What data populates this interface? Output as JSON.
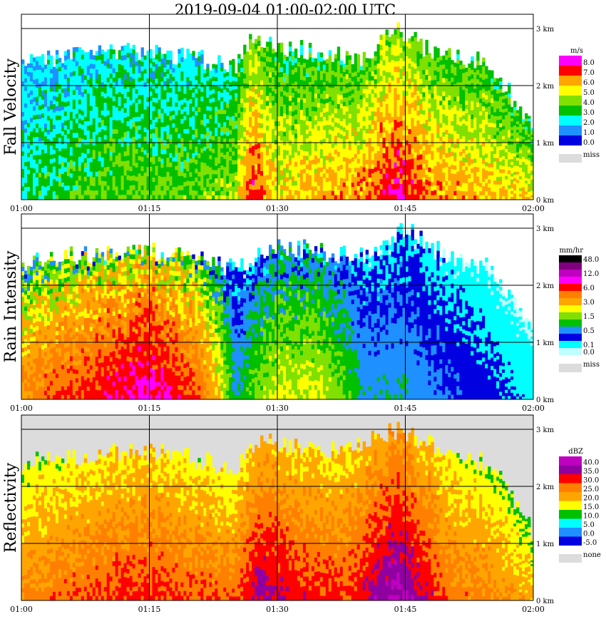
{
  "title": "2019-09-04   01:00-02:00 UTC",
  "x_ticks": [
    "01:00",
    "01:15",
    "01:30",
    "01:45",
    "02:00"
  ],
  "y_ticks": [
    "0 km",
    "1 km",
    "2 km",
    "3 km"
  ],
  "panels": [
    {
      "name": "Fall Velocity",
      "unit": "m/s",
      "legend": [
        {
          "label": "8.0",
          "color": "#ff00ff"
        },
        {
          "label": "7.0",
          "color": "#ff0000"
        },
        {
          "label": "6.0",
          "color": "#ffa500"
        },
        {
          "label": "5.0",
          "color": "#ffff00"
        },
        {
          "label": "4.0",
          "color": "#80e000"
        },
        {
          "label": "3.0",
          "color": "#00c000"
        },
        {
          "label": "2.0",
          "color": "#00ffff"
        },
        {
          "label": "1.0",
          "color": "#1e90ff"
        },
        {
          "label": "0.0",
          "color": "#0000e0"
        }
      ],
      "miss_label": "miss"
    },
    {
      "name": "Rain Intensity",
      "unit": "mm/hr",
      "legend": [
        {
          "label": "48.0",
          "color": "#000000"
        },
        {
          "label": "",
          "color": "#800080"
        },
        {
          "label": "12.0",
          "color": "#c000c0"
        },
        {
          "label": "",
          "color": "#ff00ff"
        },
        {
          "label": "6.0",
          "color": "#ff0000"
        },
        {
          "label": "",
          "color": "#ff8000"
        },
        {
          "label": "3.0",
          "color": "#ffa500"
        },
        {
          "label": "",
          "color": "#ffff00"
        },
        {
          "label": "1.5",
          "color": "#80e000"
        },
        {
          "label": "",
          "color": "#00c000"
        },
        {
          "label": "0.5",
          "color": "#1e90ff"
        },
        {
          "label": "",
          "color": "#0000e0"
        },
        {
          "label": "0.1",
          "color": "#00ffff"
        },
        {
          "label": "0.0",
          "color": "#c0ffff"
        }
      ],
      "miss_label": "miss"
    },
    {
      "name": "Reflectivity",
      "unit": "dBZ",
      "legend": [
        {
          "label": "40.0",
          "color": "#c000c0"
        },
        {
          "label": "35.0",
          "color": "#9000a0"
        },
        {
          "label": "30.0",
          "color": "#ff0000"
        },
        {
          "label": "25.0",
          "color": "#ff8000"
        },
        {
          "label": "20.0",
          "color": "#ffa500"
        },
        {
          "label": "15.0",
          "color": "#ffff00"
        },
        {
          "label": "10.0",
          "color": "#00c000"
        },
        {
          "label": "5.0",
          "color": "#00ffff"
        },
        {
          "label": "0.0",
          "color": "#1e90ff"
        },
        {
          "label": "-5.0",
          "color": "#0000e0"
        }
      ],
      "miss_label": "none"
    }
  ],
  "chart_data": {
    "type": "heatmap",
    "title": "2019-09-04   01:00-02:00 UTC",
    "x_range": [
      "01:00",
      "02:00"
    ],
    "y_range_km": [
      0,
      3
    ],
    "panels": [
      {
        "name": "Fall Velocity",
        "unit": "m/s",
        "approx_time_profile": [
          {
            "time": "01:00",
            "echo_top_km": 2.4,
            "dominant_value": 2.5
          },
          {
            "time": "01:05",
            "echo_top_km": 2.5,
            "dominant_value": 3.0
          },
          {
            "time": "01:10",
            "echo_top_km": 2.6,
            "dominant_value": 3.5
          },
          {
            "time": "01:15",
            "echo_top_km": 2.6,
            "dominant_value": 3.5
          },
          {
            "time": "01:20",
            "echo_top_km": 2.5,
            "dominant_value": 3.5
          },
          {
            "time": "01:25",
            "echo_top_km": 2.3,
            "dominant_value": 4.0
          },
          {
            "time": "01:27",
            "echo_top_km": 2.8,
            "dominant_value": 7.0
          },
          {
            "time": "01:30",
            "echo_top_km": 2.7,
            "dominant_value": 5.0
          },
          {
            "time": "01:35",
            "echo_top_km": 2.6,
            "dominant_value": 5.5
          },
          {
            "time": "01:40",
            "echo_top_km": 2.5,
            "dominant_value": 6.0
          },
          {
            "time": "01:44",
            "echo_top_km": 3.0,
            "dominant_value": 7.5
          },
          {
            "time": "01:48",
            "echo_top_km": 2.6,
            "dominant_value": 6.0
          },
          {
            "time": "01:55",
            "echo_top_km": 2.4,
            "dominant_value": 5.5
          },
          {
            "time": "02:00",
            "echo_top_km": 1.2,
            "dominant_value": 5.0
          }
        ]
      },
      {
        "name": "Rain Intensity",
        "unit": "mm/hr",
        "approx_time_profile": [
          {
            "time": "01:00",
            "echo_top_km": 2.4,
            "dominant_value": 3.0
          },
          {
            "time": "01:05",
            "echo_top_km": 2.5,
            "dominant_value": 4.0
          },
          {
            "time": "01:10",
            "echo_top_km": 2.6,
            "dominant_value": 5.0
          },
          {
            "time": "01:15",
            "echo_top_km": 2.6,
            "dominant_value": 6.0
          },
          {
            "time": "01:20",
            "echo_top_km": 2.5,
            "dominant_value": 4.0
          },
          {
            "time": "01:25",
            "echo_top_km": 2.3,
            "dominant_value": 0.5
          },
          {
            "time": "01:30",
            "echo_top_km": 2.7,
            "dominant_value": 1.5
          },
          {
            "time": "01:35",
            "echo_top_km": 2.6,
            "dominant_value": 1.5
          },
          {
            "time": "01:40",
            "echo_top_km": 2.5,
            "dominant_value": 0.5
          },
          {
            "time": "01:45",
            "echo_top_km": 3.0,
            "dominant_value": 0.5
          },
          {
            "time": "01:50",
            "echo_top_km": 2.5,
            "dominant_value": 0.3
          },
          {
            "time": "01:55",
            "echo_top_km": 2.3,
            "dominant_value": 0.2
          },
          {
            "time": "02:00",
            "echo_top_km": 1.2,
            "dominant_value": 0.1
          }
        ]
      },
      {
        "name": "Reflectivity",
        "unit": "dBZ",
        "approx_time_profile": [
          {
            "time": "01:00",
            "echo_top_km": 2.4,
            "dominant_value": 22
          },
          {
            "time": "01:05",
            "echo_top_km": 2.5,
            "dominant_value": 24
          },
          {
            "time": "01:10",
            "echo_top_km": 2.6,
            "dominant_value": 26
          },
          {
            "time": "01:15",
            "echo_top_km": 2.6,
            "dominant_value": 27
          },
          {
            "time": "01:20",
            "echo_top_km": 2.5,
            "dominant_value": 25
          },
          {
            "time": "01:25",
            "echo_top_km": 2.3,
            "dominant_value": 24
          },
          {
            "time": "01:28",
            "echo_top_km": 2.8,
            "dominant_value": 32
          },
          {
            "time": "01:32",
            "echo_top_km": 2.7,
            "dominant_value": 28
          },
          {
            "time": "01:38",
            "echo_top_km": 2.6,
            "dominant_value": 26
          },
          {
            "time": "01:44",
            "echo_top_km": 3.0,
            "dominant_value": 36
          },
          {
            "time": "01:50",
            "echo_top_km": 2.6,
            "dominant_value": 24
          },
          {
            "time": "01:55",
            "echo_top_km": 2.4,
            "dominant_value": 22
          },
          {
            "time": "02:00",
            "echo_top_km": 1.2,
            "dominant_value": 18
          }
        ]
      }
    ]
  }
}
